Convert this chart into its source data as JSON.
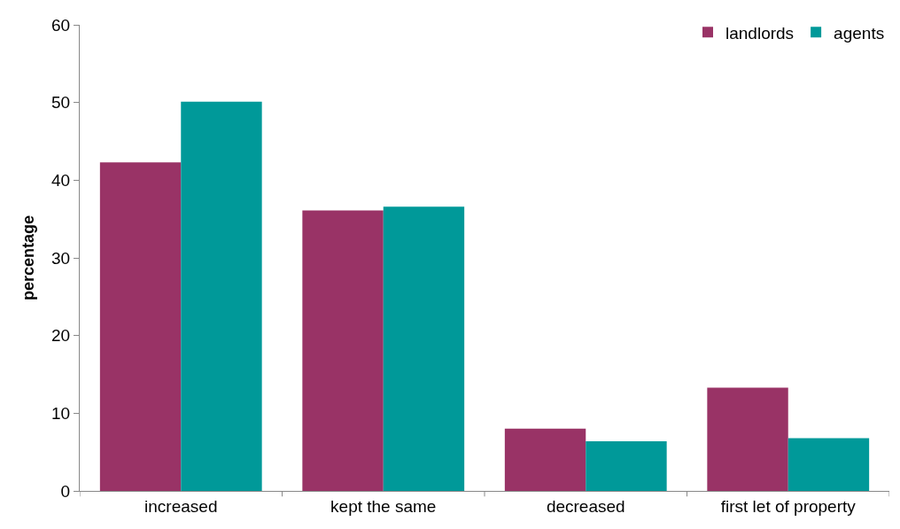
{
  "chart_data": {
    "type": "bar",
    "ylabel": "percentage",
    "categories": [
      "increased",
      "kept the same",
      "decreased",
      "first let of property"
    ],
    "series": [
      {
        "name": "landlords",
        "color": "#993366",
        "values": [
          42.3,
          36.1,
          8.0,
          13.3
        ]
      },
      {
        "name": "agents",
        "color": "#009999",
        "values": [
          50.1,
          36.6,
          6.4,
          6.8
        ]
      }
    ],
    "ylim": [
      0,
      60
    ],
    "yticks": [
      0,
      10,
      20,
      30,
      40,
      50,
      60
    ],
    "grid": false,
    "legend": "top right"
  }
}
